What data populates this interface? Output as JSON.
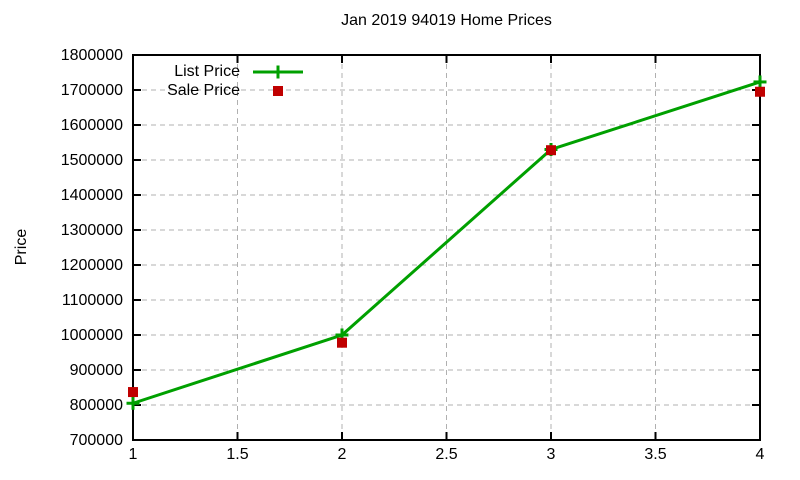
{
  "chart_data": {
    "type": "line",
    "title": "Jan 2019 94019 Home Prices",
    "xlabel": "",
    "ylabel": "Price",
    "x": [
      1,
      2,
      3,
      4
    ],
    "series": [
      {
        "name": "List Price",
        "color": "#00a000",
        "marker": "plus",
        "style": "line-with-markers",
        "values": [
          805000,
          1000000,
          1530000,
          1723000
        ]
      },
      {
        "name": "Sale Price",
        "color": "#c00000",
        "marker": "square",
        "style": "markers-only",
        "values": [
          837000,
          978000,
          1528000,
          1695000
        ]
      }
    ],
    "xlim": [
      1,
      4
    ],
    "ylim": [
      700000,
      1800000
    ],
    "xticks": [
      1,
      1.5,
      2,
      2.5,
      3,
      3.5,
      4
    ],
    "yticks": [
      700000,
      800000,
      900000,
      1000000,
      1100000,
      1200000,
      1300000,
      1400000,
      1500000,
      1600000,
      1700000,
      1800000
    ],
    "grid": true,
    "legend_position": "top-left-inside",
    "colors": {
      "background": "#ffffff",
      "grid": "#b0b0b0",
      "axis": "#000000",
      "text": "#000000"
    }
  }
}
